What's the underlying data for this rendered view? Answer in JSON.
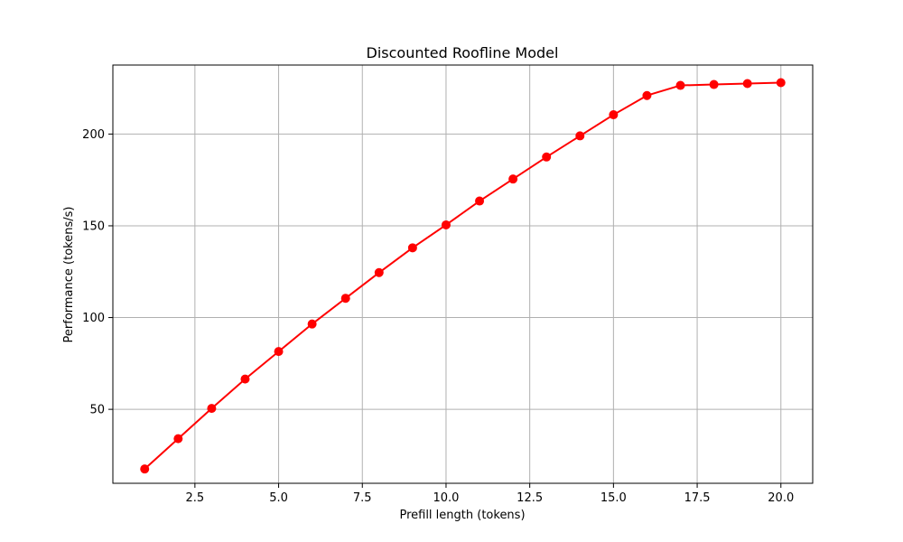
{
  "chart_data": {
    "type": "line",
    "title": "Discounted Roofline Model",
    "xlabel": "Prefill length (tokens)",
    "ylabel": "Performance (tokens/s)",
    "xlim": [
      0.05,
      20.95
    ],
    "ylim": [
      9.7,
      237.6
    ],
    "grid": true,
    "x_ticks": [
      2.5,
      5.0,
      7.5,
      10.0,
      12.5,
      15.0,
      17.5,
      20.0
    ],
    "x_tick_labels": [
      "2.5",
      "5.0",
      "7.5",
      "10.0",
      "12.5",
      "15.0",
      "17.5",
      "20.0"
    ],
    "y_ticks": [
      50,
      100,
      150,
      200
    ],
    "y_tick_labels": [
      "50",
      "100",
      "150",
      "200"
    ],
    "series": [
      {
        "color": "#ff0000",
        "marker": "circle",
        "x": [
          1,
          2,
          3,
          4,
          5,
          6,
          7,
          8,
          9,
          10,
          11,
          12,
          13,
          14,
          15,
          16,
          17,
          18,
          19,
          20
        ],
        "y": [
          17.5,
          34.0,
          50.5,
          66.5,
          81.5,
          96.5,
          110.5,
          124.5,
          138.0,
          150.5,
          163.5,
          175.5,
          187.5,
          199.0,
          210.5,
          221.0,
          226.5,
          227.0,
          227.5,
          228.0
        ]
      }
    ]
  }
}
